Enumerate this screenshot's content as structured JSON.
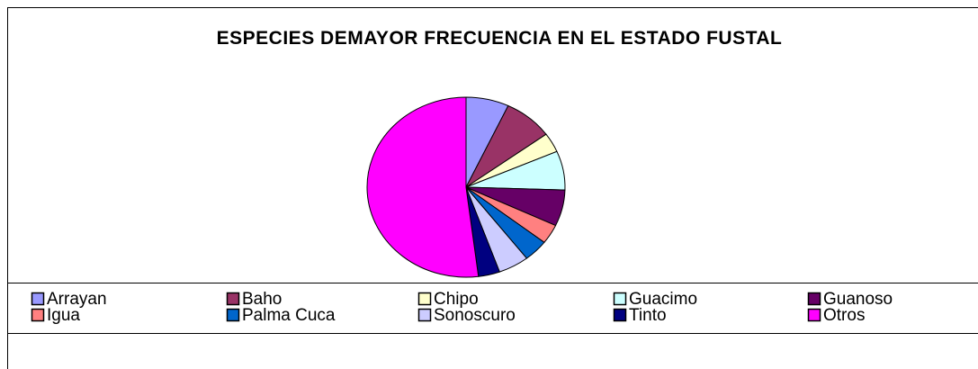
{
  "chart_data": {
    "type": "pie",
    "title": "ESPECIES DEMAYOR FRECUENCIA EN EL ESTADO FUSTAL",
    "categories": [
      "Arrayan",
      "Baho",
      "Chipo",
      "Guacimo",
      "Guanoso",
      "Igua",
      "Palma Cuca",
      "Sonoscuro",
      "Tinto",
      "Otros"
    ],
    "values": [
      7,
      8,
      3.5,
      7,
      6.5,
      3.5,
      4,
      5,
      3.5,
      52
    ],
    "colors": [
      "#9999FF",
      "#993366",
      "#FFFFCC",
      "#CCFFFF",
      "#660066",
      "#FF8080",
      "#0066CC",
      "#CCCCFF",
      "#000080",
      "#FF00FF"
    ],
    "legend": "bottom"
  }
}
